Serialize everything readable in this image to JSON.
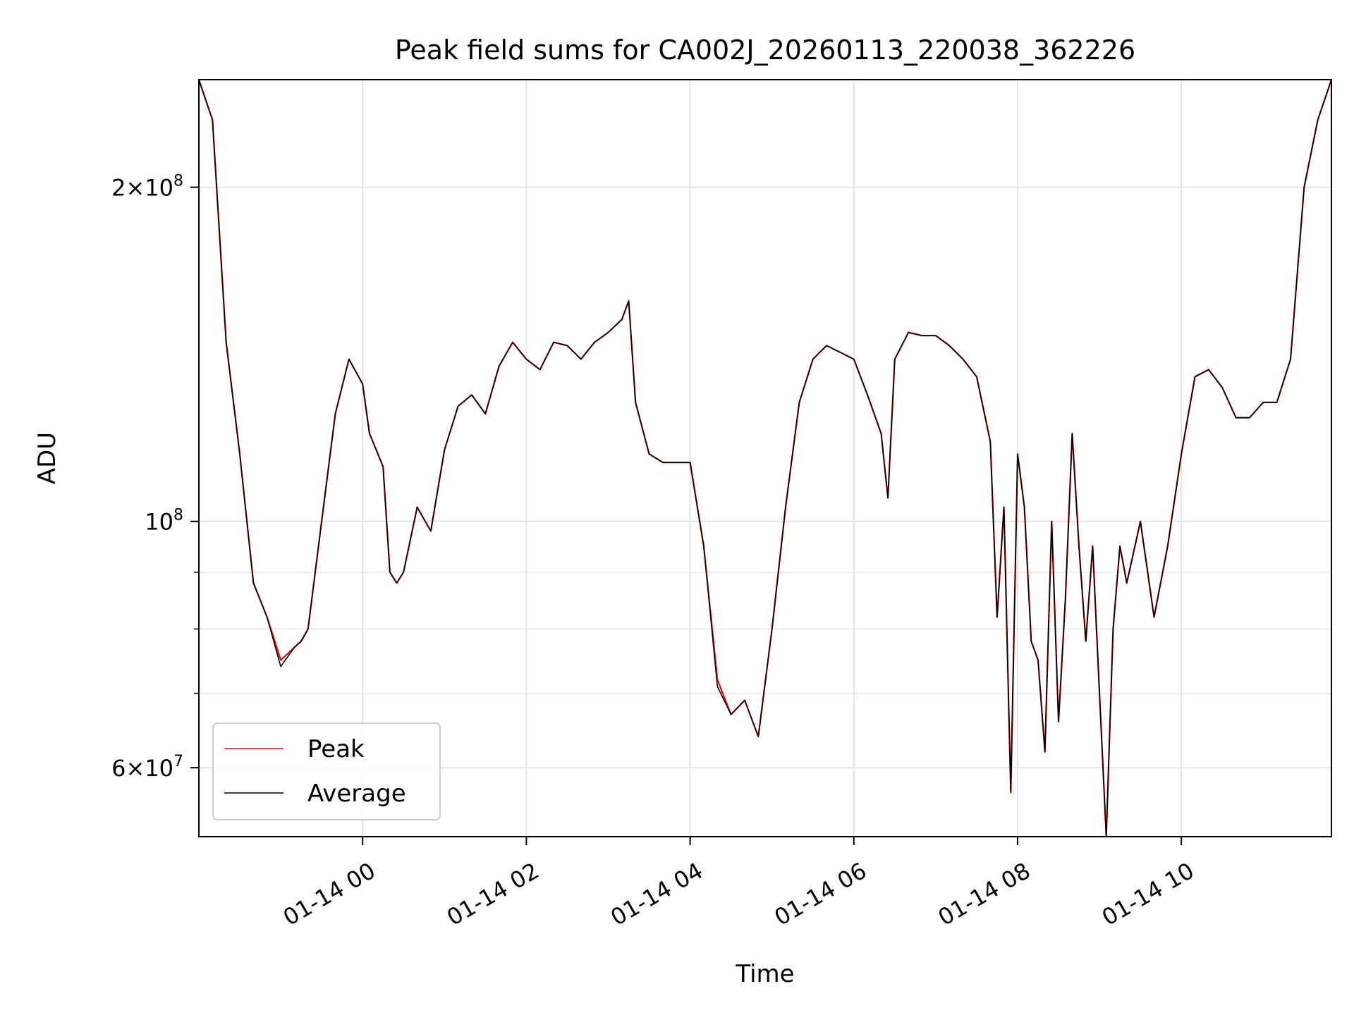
{
  "chart_data": {
    "type": "line",
    "title": "Peak field sums for CA002J_20260113_220038_362226",
    "xlabel": "Time",
    "ylabel": "ADU",
    "yscale": "log",
    "grid": true,
    "legend_placement": "lower-left",
    "xlim": [
      "2026-01-13 22:00",
      "2026-01-14 11:50"
    ],
    "ylim": [
      52000000,
      250000000
    ],
    "x_ticks": [
      {
        "value": "2026-01-14 00:00",
        "label": "01-14 00"
      },
      {
        "value": "2026-01-14 02:00",
        "label": "01-14 02"
      },
      {
        "value": "2026-01-14 04:00",
        "label": "01-14 04"
      },
      {
        "value": "2026-01-14 06:00",
        "label": "01-14 06"
      },
      {
        "value": "2026-01-14 08:00",
        "label": "01-14 08"
      },
      {
        "value": "2026-01-14 10:00",
        "label": "01-14 10"
      }
    ],
    "y_major_ticks": [
      {
        "value": 60000000,
        "base": "6",
        "times": "×",
        "exp": "10",
        "sup": "7"
      },
      {
        "value": 100000000,
        "base": "",
        "times": "",
        "exp": "10",
        "sup": "8"
      },
      {
        "value": 200000000,
        "base": "2",
        "times": "×",
        "exp": "10",
        "sup": "8"
      }
    ],
    "y_minor_ticks": [
      70000000,
      80000000,
      90000000
    ],
    "x": [
      "2026-01-13 22:00",
      "2026-01-13 22:10",
      "2026-01-13 22:20",
      "2026-01-13 22:30",
      "2026-01-13 22:40",
      "2026-01-13 22:50",
      "2026-01-13 23:00",
      "2026-01-13 23:10",
      "2026-01-13 23:15",
      "2026-01-13 23:20",
      "2026-01-13 23:30",
      "2026-01-13 23:40",
      "2026-01-13 23:50",
      "2026-01-14 00:00",
      "2026-01-14 00:05",
      "2026-01-14 00:10",
      "2026-01-14 00:15",
      "2026-01-14 00:20",
      "2026-01-14 00:25",
      "2026-01-14 00:30",
      "2026-01-14 00:40",
      "2026-01-14 00:50",
      "2026-01-14 01:00",
      "2026-01-14 01:10",
      "2026-01-14 01:20",
      "2026-01-14 01:30",
      "2026-01-14 01:40",
      "2026-01-14 01:50",
      "2026-01-14 02:00",
      "2026-01-14 02:10",
      "2026-01-14 02:20",
      "2026-01-14 02:30",
      "2026-01-14 02:40",
      "2026-01-14 02:50",
      "2026-01-14 03:00",
      "2026-01-14 03:10",
      "2026-01-14 03:15",
      "2026-01-14 03:20",
      "2026-01-14 03:30",
      "2026-01-14 03:40",
      "2026-01-14 03:50",
      "2026-01-14 04:00",
      "2026-01-14 04:10",
      "2026-01-14 04:20",
      "2026-01-14 04:30",
      "2026-01-14 04:40",
      "2026-01-14 04:50",
      "2026-01-14 05:00",
      "2026-01-14 05:10",
      "2026-01-14 05:20",
      "2026-01-14 05:30",
      "2026-01-14 05:40",
      "2026-01-14 05:50",
      "2026-01-14 06:00",
      "2026-01-14 06:10",
      "2026-01-14 06:20",
      "2026-01-14 06:25",
      "2026-01-14 06:30",
      "2026-01-14 06:40",
      "2026-01-14 06:50",
      "2026-01-14 07:00",
      "2026-01-14 07:10",
      "2026-01-14 07:20",
      "2026-01-14 07:30",
      "2026-01-14 07:40",
      "2026-01-14 07:45",
      "2026-01-14 07:50",
      "2026-01-14 07:55",
      "2026-01-14 08:00",
      "2026-01-14 08:05",
      "2026-01-14 08:10",
      "2026-01-14 08:15",
      "2026-01-14 08:20",
      "2026-01-14 08:25",
      "2026-01-14 08:30",
      "2026-01-14 08:35",
      "2026-01-14 08:40",
      "2026-01-14 08:45",
      "2026-01-14 08:50",
      "2026-01-14 08:55",
      "2026-01-14 09:00",
      "2026-01-14 09:05",
      "2026-01-14 09:10",
      "2026-01-14 09:15",
      "2026-01-14 09:20",
      "2026-01-14 09:30",
      "2026-01-14 09:40",
      "2026-01-14 09:50",
      "2026-01-14 10:00",
      "2026-01-14 10:10",
      "2026-01-14 10:20",
      "2026-01-14 10:30",
      "2026-01-14 10:40",
      "2026-01-14 10:50",
      "2026-01-14 11:00",
      "2026-01-14 11:10",
      "2026-01-14 11:20",
      "2026-01-14 11:30",
      "2026-01-14 11:40",
      "2026-01-14 11:50"
    ],
    "series": [
      {
        "name": "Peak",
        "color": "#ff0000",
        "values": [
          250000000,
          230000000,
          145000000,
          115000000,
          88000000,
          82000000,
          75000000,
          77000000,
          78000000,
          80000000,
          100000000,
          125000000,
          140000000,
          133000000,
          120000000,
          116000000,
          112000000,
          90000000,
          88000000,
          90000000,
          103000000,
          98000000,
          116000000,
          127000000,
          130000000,
          125000000,
          138000000,
          145000000,
          140000000,
          137000000,
          145000000,
          144000000,
          140000000,
          145000000,
          148000000,
          152000000,
          158000000,
          128000000,
          115000000,
          113000000,
          113000000,
          113000000,
          95000000,
          72000000,
          67000000,
          69000000,
          64000000,
          80000000,
          103000000,
          128000000,
          140000000,
          144000000,
          142000000,
          140000000,
          130000000,
          120000000,
          105000000,
          140000000,
          148000000,
          147000000,
          147000000,
          144000000,
          140000000,
          135000000,
          118000000,
          82000000,
          103000000,
          57000000,
          115000000,
          103000000,
          78000000,
          75000000,
          62000000,
          100000000,
          66000000,
          85000000,
          120000000,
          95000000,
          78000000,
          95000000,
          70000000,
          52000000,
          80000000,
          95000000,
          88000000,
          100000000,
          82000000,
          95000000,
          115000000,
          135000000,
          137000000,
          132000000,
          124000000,
          124000000,
          128000000,
          128000000,
          140000000,
          200000000,
          230000000,
          250000000
        ]
      },
      {
        "name": "Average",
        "color": "#000000",
        "values": [
          250000000,
          230000000,
          145000000,
          115000000,
          88000000,
          82000000,
          74000000,
          77000000,
          78000000,
          80000000,
          100000000,
          125000000,
          140000000,
          133000000,
          120000000,
          116000000,
          112000000,
          90000000,
          88000000,
          90000000,
          103000000,
          98000000,
          116000000,
          127000000,
          130000000,
          125000000,
          138000000,
          145000000,
          140000000,
          137000000,
          145000000,
          144000000,
          140000000,
          145000000,
          148000000,
          152000000,
          158000000,
          128000000,
          115000000,
          113000000,
          113000000,
          113000000,
          95000000,
          71000000,
          67000000,
          69000000,
          64000000,
          80000000,
          103000000,
          128000000,
          140000000,
          144000000,
          142000000,
          140000000,
          130000000,
          120000000,
          105000000,
          140000000,
          148000000,
          147000000,
          147000000,
          144000000,
          140000000,
          135000000,
          118000000,
          82000000,
          103000000,
          57000000,
          115000000,
          103000000,
          78000000,
          75000000,
          62000000,
          100000000,
          66000000,
          85000000,
          120000000,
          95000000,
          78000000,
          95000000,
          70000000,
          52000000,
          80000000,
          95000000,
          88000000,
          100000000,
          82000000,
          95000000,
          115000000,
          135000000,
          137000000,
          132000000,
          124000000,
          124000000,
          128000000,
          128000000,
          140000000,
          200000000,
          230000000,
          250000000
        ]
      }
    ]
  }
}
